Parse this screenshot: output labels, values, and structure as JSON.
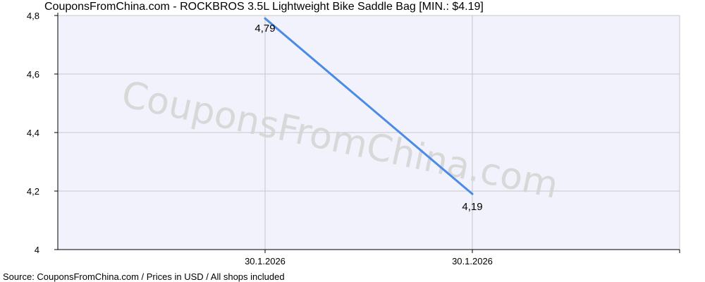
{
  "chart_data": {
    "type": "line",
    "title": "CouponsFromChina.com - ROCKBROS 3.5L Lightweight Bike Saddle Bag [MIN.: $4.19]",
    "source": "Source: CouponsFromChina.com / Prices in USD / All shops included",
    "watermark": "CouponsFromChina.com",
    "xlabel": "",
    "ylabel": "",
    "categories": [
      "30.1.2026",
      "30.1.2026"
    ],
    "values": [
      4.79,
      4.19
    ],
    "value_labels": [
      "4,79",
      "4,19"
    ],
    "ylim": [
      4,
      4.8
    ],
    "yticks": [
      4,
      4.2,
      4.4,
      4.6,
      4.8
    ],
    "ytick_labels": [
      "4",
      "4,2",
      "4,4",
      "4,6",
      "4,8"
    ],
    "grid": true,
    "legend": "none",
    "colors": {
      "line": "#4a8be8",
      "plot_background": "#f1f2fb",
      "grid": "#c8c8c8",
      "axis": "#000000",
      "watermark": "#d4d4d4"
    }
  }
}
